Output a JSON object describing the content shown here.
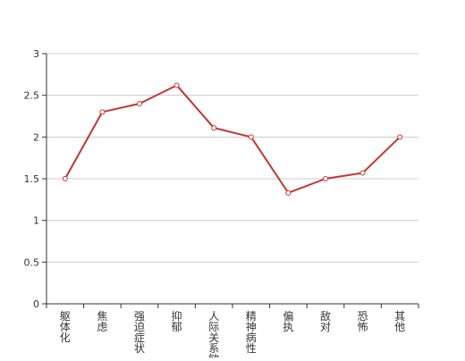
{
  "chart_data": {
    "type": "line",
    "title": "",
    "xlabel": "",
    "ylabel": "",
    "categories": [
      [
        "躯",
        "体",
        "化"
      ],
      [
        "焦",
        "虑"
      ],
      [
        "强",
        "迫",
        "症",
        "状"
      ],
      [
        "抑",
        "郁"
      ],
      [
        "人",
        "际",
        "关",
        "系",
        "敏"
      ],
      [
        "精",
        "神",
        "病",
        "性"
      ],
      [
        "偏",
        "执"
      ],
      [
        "敌",
        "对"
      ],
      [
        "恐",
        "怖"
      ],
      [
        "其",
        "他"
      ]
    ],
    "series": [
      {
        "values": [
          1.5,
          2.3,
          2.4,
          2.62,
          2.11,
          2.0,
          1.33,
          1.5,
          1.57,
          2.0
        ]
      }
    ],
    "ylim": [
      0,
      3
    ],
    "yticks": [
      "0",
      "0.5",
      "1",
      "1.5",
      "2",
      "2.5",
      "3"
    ],
    "grid": true,
    "legend": "none",
    "colors": {
      "line": "#c23531",
      "marker_fill": "#ffffff",
      "axis": "#333333",
      "grid": "#cccccc",
      "text": "#333333"
    }
  }
}
